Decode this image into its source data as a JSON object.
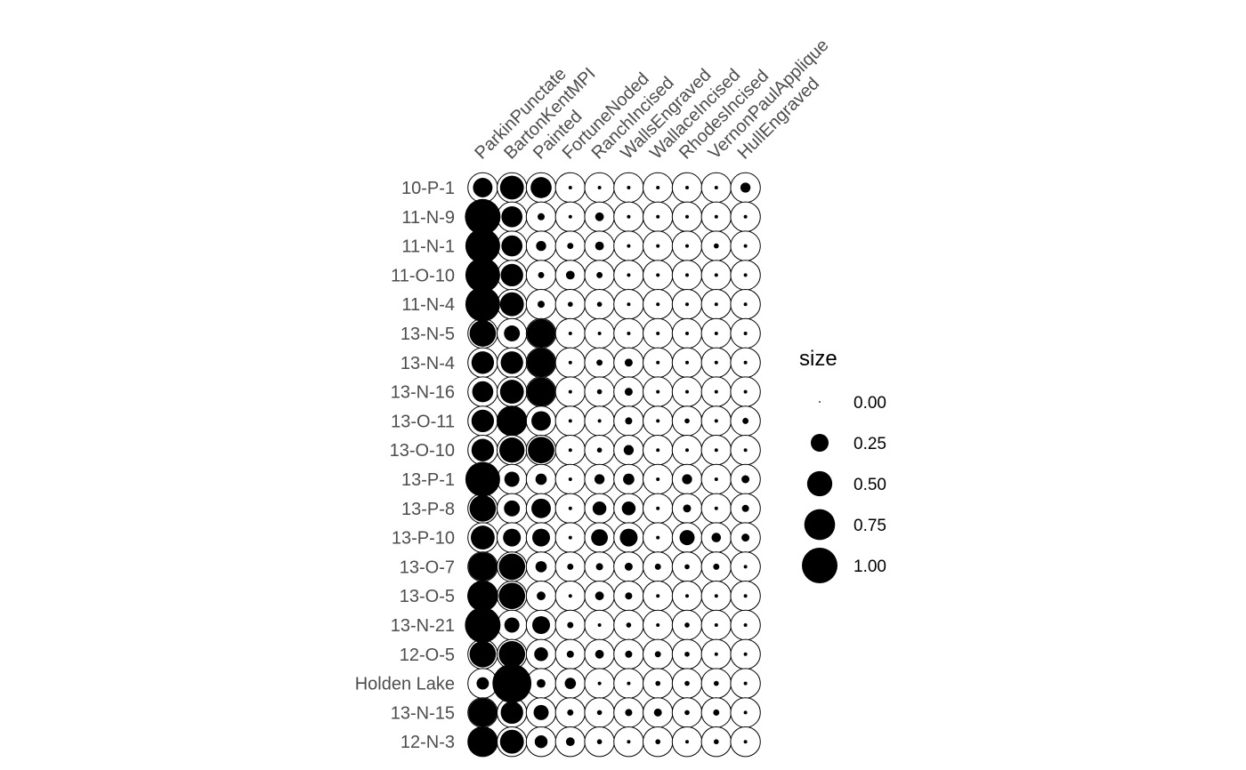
{
  "chart_data": {
    "type": "scatter",
    "subtype": "bubble-matrix",
    "columns": [
      "ParkinPunctate",
      "BartonKentMPI",
      "Painted",
      "FortuneNoded",
      "RanchIncised",
      "WallsEngraved",
      "WallaceIncised",
      "RhodesIncised",
      "VernonPaulApplique",
      "HullEngraved"
    ],
    "rows": [
      "10-P-1",
      "11-N-9",
      "11-N-1",
      "11-O-10",
      "11-N-4",
      "13-N-5",
      "13-N-4",
      "13-N-16",
      "13-O-11",
      "13-O-10",
      "13-P-1",
      "13-P-8",
      "13-P-10",
      "13-O-7",
      "13-O-5",
      "13-N-21",
      "12-O-5",
      "Holden Lake",
      "13-N-15",
      "12-N-3"
    ],
    "values": [
      [
        0.3,
        0.45,
        0.35,
        0.01,
        0.01,
        0.01,
        0.01,
        0.01,
        0.01,
        0.08
      ],
      [
        1.0,
        0.35,
        0.04,
        0.01,
        0.06,
        0.01,
        0.01,
        0.01,
        0.01,
        0.01
      ],
      [
        0.95,
        0.35,
        0.08,
        0.03,
        0.06,
        0.01,
        0.01,
        0.01,
        0.02,
        0.01
      ],
      [
        0.95,
        0.4,
        0.03,
        0.06,
        0.03,
        0.01,
        0.01,
        0.01,
        0.01,
        0.01
      ],
      [
        0.95,
        0.45,
        0.04,
        0.02,
        0.02,
        0.01,
        0.01,
        0.01,
        0.01,
        0.01
      ],
      [
        0.55,
        0.2,
        0.65,
        0.01,
        0.01,
        0.01,
        0.01,
        0.01,
        0.01,
        0.01
      ],
      [
        0.4,
        0.4,
        0.65,
        0.01,
        0.03,
        0.05,
        0.01,
        0.01,
        0.01,
        0.01
      ],
      [
        0.35,
        0.45,
        0.65,
        0.01,
        0.02,
        0.05,
        0.01,
        0.01,
        0.01,
        0.01
      ],
      [
        0.4,
        0.7,
        0.3,
        0.01,
        0.01,
        0.04,
        0.01,
        0.02,
        0.01,
        0.03
      ],
      [
        0.4,
        0.5,
        0.55,
        0.01,
        0.02,
        0.08,
        0.01,
        0.01,
        0.01,
        0.01
      ],
      [
        0.95,
        0.18,
        0.1,
        0.01,
        0.08,
        0.1,
        0.01,
        0.08,
        0.01,
        0.05
      ],
      [
        0.55,
        0.2,
        0.3,
        0.01,
        0.15,
        0.15,
        0.01,
        0.05,
        0.01,
        0.04
      ],
      [
        0.45,
        0.25,
        0.25,
        0.01,
        0.22,
        0.25,
        0.01,
        0.18,
        0.07,
        0.05
      ],
      [
        0.65,
        0.55,
        0.1,
        0.03,
        0.04,
        0.05,
        0.03,
        0.02,
        0.03,
        0.01
      ],
      [
        0.75,
        0.55,
        0.06,
        0.01,
        0.06,
        0.04,
        0.01,
        0.01,
        0.01,
        0.01
      ],
      [
        1.0,
        0.18,
        0.25,
        0.03,
        0.01,
        0.02,
        0.01,
        0.02,
        0.01,
        0.01
      ],
      [
        0.55,
        0.55,
        0.15,
        0.04,
        0.06,
        0.04,
        0.03,
        0.02,
        0.01,
        0.01
      ],
      [
        0.12,
        1.2,
        0.06,
        0.1,
        0.01,
        0.01,
        0.02,
        0.02,
        0.02,
        0.01
      ],
      [
        0.65,
        0.4,
        0.18,
        0.03,
        0.02,
        0.04,
        0.05,
        0.02,
        0.03,
        0.01
      ],
      [
        0.7,
        0.45,
        0.13,
        0.06,
        0.02,
        0.01,
        0.02,
        0.01,
        0.02,
        0.01
      ]
    ],
    "legend": {
      "title": "size",
      "values": [
        0.0,
        0.25,
        0.5,
        0.75,
        1.0
      ],
      "labels": [
        "0.00",
        "0.25",
        "0.50",
        "0.75",
        "1.00"
      ],
      "placement": "right"
    },
    "title": "",
    "xlabel": "",
    "ylabel": "",
    "grid": false,
    "colors": {
      "point": "#000000",
      "tile": "#ffffff",
      "tick_text": "#4d4d4d"
    }
  }
}
